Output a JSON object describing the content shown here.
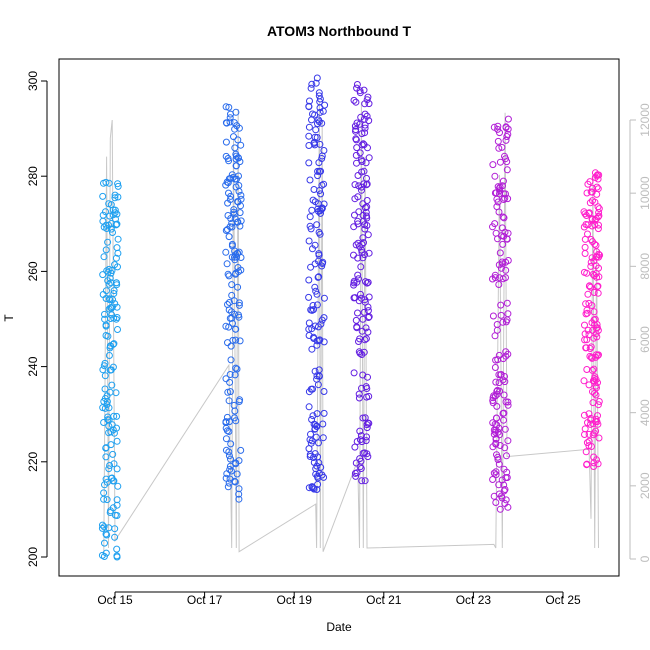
{
  "chart_data": {
    "type": "scatter",
    "title": "ATOM3 Northbound T",
    "xlabel": "Date",
    "ylabel": "T",
    "ylim": [
      200,
      300
    ],
    "y_ticks": [
      200,
      220,
      240,
      260,
      280,
      300
    ],
    "xlim": [
      "2008-10-13T18:00",
      "2008-10-26T06:00"
    ],
    "x_ticks": [
      {
        "date": "2008-10-15",
        "label": "Oct 15"
      },
      {
        "date": "2008-10-17",
        "label": "Oct 17"
      },
      {
        "date": "2008-10-19",
        "label": "Oct 19"
      },
      {
        "date": "2008-10-21",
        "label": "Oct 21"
      },
      {
        "date": "2008-10-23",
        "label": "Oct 23"
      },
      {
        "date": "2008-10-25",
        "label": "Oct 25"
      }
    ],
    "y2lim": [
      0,
      12600
    ],
    "y2_ticks": [
      0,
      2000,
      4000,
      6000,
      8000,
      10000,
      12000
    ],
    "colors": {
      "points_start": "#1ea0f0",
      "points_mid": "#3c1ee6",
      "points_end": "#ff1ecc",
      "altitude_line": "#c8c8c8",
      "right_axis": "#bdbdbd"
    },
    "series": [
      {
        "role": "temperature_points",
        "marker": "open-circle",
        "color_gradient": "time",
        "flights": [
          {
            "date": "2008-10-14T21:30",
            "min_T": 200,
            "max_T": 279
          },
          {
            "date": "2008-10-17T15:30",
            "min_T": 212,
            "max_T": 295
          },
          {
            "date": "2008-10-19T12:00",
            "min_T": 214,
            "max_T": 301
          },
          {
            "date": "2008-10-20T12:00",
            "min_T": 216,
            "max_T": 300
          },
          {
            "date": "2008-10-23T14:30",
            "min_T": 210,
            "max_T": 292
          },
          {
            "date": "2008-10-25T15:30",
            "min_T": 219,
            "max_T": 281
          }
        ]
      },
      {
        "role": "altitude_line",
        "axis": "right",
        "points": [
          [
            "2008-10-14T18:00",
            200
          ],
          [
            "2008-10-14T19:30",
            11000
          ],
          [
            "2008-10-14T20:30",
            300
          ],
          [
            "2008-10-14T21:30",
            11500
          ],
          [
            "2008-10-14T22:30",
            12000
          ],
          [
            "2008-10-15T00:00",
            500
          ],
          [
            "2008-10-17T13:00",
            5300
          ],
          [
            "2008-10-17T14:30",
            300
          ],
          [
            "2008-10-17T15:30",
            11500
          ],
          [
            "2008-10-17T17:00",
            300
          ],
          [
            "2008-10-17T18:00",
            12300
          ],
          [
            "2008-10-17T18:30",
            200
          ],
          [
            "2008-10-19T11:30",
            1500
          ],
          [
            "2008-10-19T12:00",
            300
          ],
          [
            "2008-10-19T13:30",
            12500
          ],
          [
            "2008-10-19T14:00",
            300
          ],
          [
            "2008-10-19T15:00",
            12000
          ],
          [
            "2008-10-19T15:30",
            200
          ],
          [
            "2008-10-20T10:00",
            2700
          ],
          [
            "2008-10-20T11:00",
            300
          ],
          [
            "2008-10-20T12:00",
            12500
          ],
          [
            "2008-10-20T13:00",
            300
          ],
          [
            "2008-10-20T14:00",
            11000
          ],
          [
            "2008-10-20T15:00",
            300
          ],
          [
            "2008-10-23T11:00",
            400
          ],
          [
            "2008-10-23T12:00",
            300
          ],
          [
            "2008-10-23T14:00",
            10500
          ],
          [
            "2008-10-23T15:30",
            300
          ],
          [
            "2008-10-23T17:00",
            12200
          ],
          [
            "2008-10-23T18:00",
            2800
          ],
          [
            "2008-10-25T14:00",
            3000
          ],
          [
            "2008-10-25T15:00",
            1100
          ],
          [
            "2008-10-25T16:00",
            10500
          ],
          [
            "2008-10-25T17:00",
            300
          ],
          [
            "2008-10-25T18:00",
            8500
          ],
          [
            "2008-10-25T19:00",
            300
          ]
        ]
      }
    ]
  }
}
